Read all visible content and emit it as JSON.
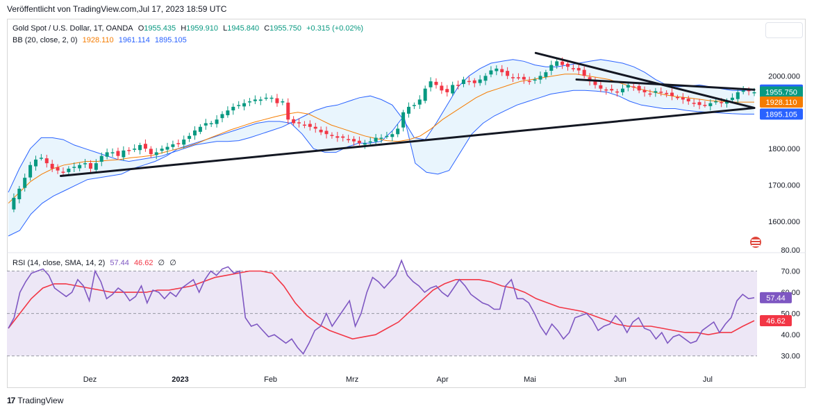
{
  "header": {
    "text": "Veröffentlicht von TradingView.com,Jul 17, 2023 18:59 UTC"
  },
  "legend_main": {
    "symbol": "Gold Spot / U.S. Dollar, 1T, OANDA",
    "open_label": "O",
    "open": "1955.435",
    "high_label": "H",
    "high": "1959.910",
    "low_label": "L",
    "low": "1945.840",
    "close_label": "C",
    "close": "1955.750",
    "change": "+0.315 (+0.02%)"
  },
  "legend_bb": {
    "label": "BB (20, close, 2, 0)",
    "basis": "1928.110",
    "upper": "1961.114",
    "lower": "1895.105"
  },
  "legend_rsi": {
    "label": "RSI (14, close, SMA, 14, 2)",
    "rsi": "57.44",
    "sma": "46.62",
    "na1": "∅",
    "na2": "∅"
  },
  "price_axis": {
    "ticks": [
      "2000.000",
      "1900.000",
      "1800.000",
      "1700.000",
      "1600.000"
    ]
  },
  "price_badges": [
    {
      "text": "1961.114",
      "color": "#2962ff"
    },
    {
      "text": "1955.750",
      "color": "#089981"
    },
    {
      "text": "1928.110",
      "color": "#f57c00"
    },
    {
      "text": "1895.105",
      "color": "#2962ff"
    }
  ],
  "rsi_axis": {
    "ticks": [
      "80.00",
      "70.00",
      "60.00",
      "50.00",
      "40.00",
      "30.00"
    ]
  },
  "rsi_badges": [
    {
      "text": "57.44",
      "color": "#7e57c2"
    },
    {
      "text": "46.62",
      "color": "#f23645"
    }
  ],
  "time_axis": [
    "Dez",
    "2023",
    "Feb",
    "Mrz",
    "Apr",
    "Mai",
    "Jun",
    "Jul"
  ],
  "footer": {
    "brand": "TradingView"
  },
  "colors": {
    "up": "#089981",
    "down": "#f23645",
    "bb_line": "#2962ff",
    "bb_fill": "#e3f2fd",
    "basis": "#f57c00",
    "rsi": "#7e57c2",
    "rsi_sma": "#f23645",
    "rsi_band": "#ede7f6"
  },
  "chart_data": {
    "type": "candlestick",
    "symbol": "Gold Spot / U.S. Dollar",
    "ylim": [
      1560,
      2075
    ],
    "x_dates_approx": [
      "2022-11-03",
      "2023-07-17"
    ],
    "series": [
      {
        "name": "XAUUSD daily close (approx)",
        "key": "close",
        "values": [
          1630,
          1665,
          1690,
          1720,
          1755,
          1770,
          1775,
          1760,
          1745,
          1740,
          1735,
          1745,
          1750,
          1755,
          1760,
          1745,
          1760,
          1780,
          1790,
          1790,
          1780,
          1795,
          1795,
          1800,
          1810,
          1800,
          1785,
          1790,
          1800,
          1805,
          1812,
          1815,
          1825,
          1835,
          1850,
          1860,
          1870,
          1870,
          1880,
          1895,
          1905,
          1915,
          1920,
          1925,
          1930,
          1935,
          1935,
          1940,
          1940,
          1925,
          1930,
          1880,
          1870,
          1870,
          1865,
          1860,
          1855,
          1845,
          1840,
          1835,
          1830,
          1830,
          1825,
          1820,
          1815,
          1815,
          1820,
          1830,
          1830,
          1835,
          1840,
          1855,
          1900,
          1915,
          1920,
          1935,
          1965,
          1985,
          1975,
          1960,
          1955,
          1975,
          1975,
          1990,
          1985,
          1980,
          1990,
          2000,
          2015,
          2020,
          2010,
          2000,
          1995,
          1995,
          1990,
          1985,
          1990,
          2000,
          2010,
          2030,
          2040,
          2030,
          2025,
          2020,
          2015,
          2000,
          1985,
          1975,
          1965,
          1960,
          1960,
          1955,
          1965,
          1975,
          1970,
          1960,
          1955,
          1950,
          1958,
          1955,
          1950,
          1945,
          1940,
          1935,
          1930,
          1925,
          1920,
          1920,
          1925,
          1930,
          1925,
          1930,
          1940,
          1955,
          1960,
          1958,
          1955
        ]
      },
      {
        "name": "BB upper (approx)",
        "key": "upper",
        "values": [
          1680,
          1745,
          1800,
          1830,
          1830,
          1825,
          1810,
          1800,
          1790,
          1780,
          1770,
          1765,
          1770,
          1775,
          1780,
          1790,
          1800,
          1810,
          1815,
          1820,
          1820,
          1822,
          1830,
          1840,
          1850,
          1860,
          1875,
          1890,
          1905,
          1915,
          1920,
          1930,
          1940,
          1945,
          1935,
          1920,
          1880,
          1830,
          1825,
          1870,
          1920,
          1970,
          2000,
          2020,
          2035,
          2040,
          2045,
          2040,
          2030,
          2025,
          2025,
          2030,
          2035,
          2040,
          2045,
          2040,
          2035,
          2025,
          2010,
          1990,
          1975,
          1970,
          1972,
          1975,
          1970,
          1965,
          1960,
          1960,
          1962
        ]
      },
      {
        "name": "BB basis (approx)",
        "key": "basis",
        "values": [
          1650,
          1680,
          1710,
          1730,
          1745,
          1755,
          1760,
          1765,
          1765,
          1768,
          1770,
          1775,
          1778,
          1782,
          1790,
          1798,
          1805,
          1815,
          1828,
          1840,
          1852,
          1862,
          1872,
          1880,
          1888,
          1895,
          1900,
          1895,
          1880,
          1865,
          1855,
          1845,
          1835,
          1828,
          1822,
          1820,
          1825,
          1835,
          1855,
          1880,
          1900,
          1920,
          1940,
          1955,
          1965,
          1975,
          1985,
          1990,
          1995,
          2000,
          2005,
          2005,
          2000,
          1995,
          1990,
          1980,
          1970,
          1962,
          1955,
          1948,
          1943,
          1940,
          1936,
          1932,
          1930,
          1928,
          1928,
          1928
        ]
      },
      {
        "name": "BB lower (approx)",
        "key": "lower",
        "values": [
          1560,
          1575,
          1620,
          1650,
          1670,
          1685,
          1700,
          1715,
          1720,
          1725,
          1730,
          1745,
          1755,
          1765,
          1780,
          1800,
          1810,
          1820,
          1830,
          1840,
          1850,
          1860,
          1870,
          1875,
          1875,
          1870,
          1840,
          1800,
          1790,
          1790,
          1805,
          1815,
          1815,
          1820,
          1850,
          1890,
          1760,
          1735,
          1730,
          1740,
          1790,
          1840,
          1870,
          1890,
          1905,
          1920,
          1930,
          1940,
          1950,
          1955,
          1960,
          1960,
          1958,
          1955,
          1945,
          1930,
          1920,
          1915,
          1910,
          1910,
          1905,
          1902,
          1900,
          1898,
          1896,
          1895,
          1895
        ]
      },
      {
        "name": "RSI (14) (approx)",
        "key": "rsi",
        "values": [
          43,
          48,
          60,
          65,
          69,
          70,
          71,
          68,
          62,
          60,
          58,
          60,
          66,
          63,
          56,
          70,
          65,
          57,
          59,
          62,
          60,
          56,
          58,
          63,
          55,
          61,
          60,
          57,
          60,
          58,
          62,
          64,
          66,
          60,
          66,
          70,
          68,
          71,
          72,
          69,
          70,
          48,
          44,
          45,
          42,
          39,
          40,
          38,
          36,
          38,
          34,
          31,
          36,
          42,
          44,
          50,
          44,
          48,
          52,
          56,
          44,
          50,
          60,
          67,
          65,
          62,
          65,
          68,
          75,
          68,
          65,
          63,
          60,
          62,
          63,
          60,
          58,
          62,
          66,
          63,
          59,
          57,
          55,
          54,
          52,
          52,
          63,
          66,
          57,
          57,
          55,
          50,
          44,
          40,
          45,
          42,
          38,
          41,
          48,
          49,
          50,
          47,
          42,
          44,
          45,
          49,
          46,
          41,
          46,
          48,
          43,
          42,
          38,
          41,
          36,
          39,
          40,
          38,
          36,
          37,
          42,
          44,
          46,
          41,
          45,
          48,
          56,
          59,
          57,
          57.44
        ]
      },
      {
        "name": "RSI SMA (14) (approx)",
        "key": "rsi_sma",
        "values": [
          43,
          50,
          57,
          62,
          64,
          64,
          63,
          62,
          61,
          60,
          60,
          60,
          60,
          61,
          61,
          62,
          63,
          65,
          67,
          68,
          69,
          70,
          70,
          69,
          63,
          55,
          49,
          45,
          42,
          40,
          38,
          39,
          40,
          43,
          46,
          51,
          56,
          61,
          64,
          66,
          66,
          66,
          65,
          63,
          62,
          60,
          57,
          55,
          53,
          52,
          51,
          49,
          47,
          45,
          44,
          44,
          44,
          43,
          42,
          41,
          41,
          40,
          41,
          41,
          44,
          46.62
        ]
      }
    ],
    "trendlines": [
      {
        "from": [
          "2022-11-21",
          1725
        ],
        "to": [
          "2023-07-17",
          1912
        ]
      },
      {
        "from": [
          "2023-05-03",
          2063
        ],
        "to": [
          "2023-07-17",
          1912
        ]
      },
      {
        "from": [
          "2023-05-17",
          1990
        ],
        "to": [
          "2023-07-17",
          1962
        ]
      }
    ],
    "rsi_bands": [
      30,
      70
    ],
    "rsi_ylim": [
      25,
      80
    ]
  }
}
